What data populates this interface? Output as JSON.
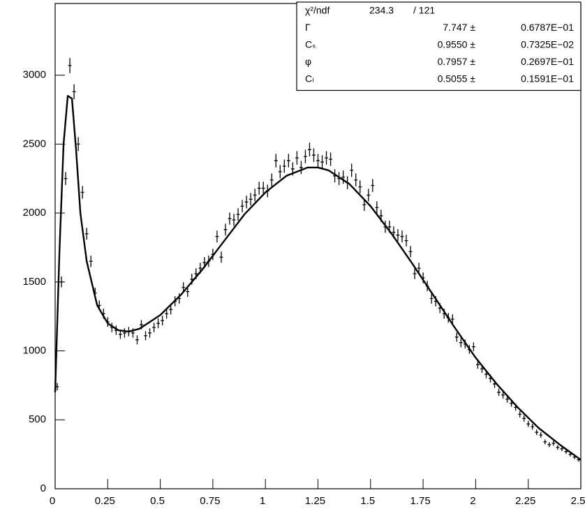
{
  "chart_data": {
    "type": "histogram-fit",
    "xlim": [
      0,
      2.5
    ],
    "ylim": [
      0,
      3520
    ],
    "xticks": [
      0,
      0.25,
      0.5,
      0.75,
      1,
      1.25,
      1.5,
      1.75,
      2,
      2.25,
      2.5
    ],
    "yticks": [
      0,
      500,
      1000,
      1500,
      2000,
      2500,
      3000
    ],
    "color": "#000000",
    "x": [
      0.01,
      0.03,
      0.05,
      0.07,
      0.09,
      0.11,
      0.13,
      0.15,
      0.17,
      0.19,
      0.21,
      0.23,
      0.25,
      0.27,
      0.29,
      0.31,
      0.33,
      0.35,
      0.37,
      0.39,
      0.41,
      0.43,
      0.45,
      0.47,
      0.49,
      0.51,
      0.53,
      0.55,
      0.57,
      0.59,
      0.61,
      0.63,
      0.65,
      0.67,
      0.69,
      0.71,
      0.73,
      0.75,
      0.77,
      0.79,
      0.81,
      0.83,
      0.85,
      0.87,
      0.89,
      0.91,
      0.93,
      0.95,
      0.97,
      0.99,
      1.01,
      1.03,
      1.05,
      1.07,
      1.09,
      1.11,
      1.13,
      1.15,
      1.17,
      1.19,
      1.21,
      1.23,
      1.25,
      1.27,
      1.29,
      1.31,
      1.33,
      1.35,
      1.37,
      1.39,
      1.41,
      1.43,
      1.45,
      1.47,
      1.49,
      1.51,
      1.53,
      1.55,
      1.57,
      1.59,
      1.61,
      1.63,
      1.65,
      1.67,
      1.69,
      1.71,
      1.73,
      1.75,
      1.77,
      1.79,
      1.81,
      1.83,
      1.85,
      1.87,
      1.89,
      1.91,
      1.93,
      1.95,
      1.97,
      1.99,
      2.01,
      2.03,
      2.05,
      2.07,
      2.09,
      2.11,
      2.13,
      2.15,
      2.17,
      2.19,
      2.21,
      2.23,
      2.25,
      2.27,
      2.29,
      2.31,
      2.33,
      2.35,
      2.37,
      2.39,
      2.41,
      2.43,
      2.45,
      2.47,
      2.49
    ],
    "values": [
      740,
      1500,
      2250,
      3070,
      2880,
      2500,
      2150,
      1850,
      1650,
      1420,
      1330,
      1270,
      1210,
      1170,
      1150,
      1120,
      1130,
      1140,
      1130,
      1080,
      1190,
      1110,
      1130,
      1170,
      1200,
      1220,
      1270,
      1300,
      1360,
      1380,
      1460,
      1430,
      1520,
      1560,
      1600,
      1640,
      1650,
      1700,
      1830,
      1680,
      1880,
      1960,
      1950,
      1990,
      2050,
      2080,
      2100,
      2130,
      2180,
      2180,
      2160,
      2240,
      2380,
      2300,
      2340,
      2380,
      2320,
      2400,
      2330,
      2410,
      2460,
      2420,
      2380,
      2370,
      2400,
      2390,
      2270,
      2250,
      2260,
      2220,
      2310,
      2240,
      2190,
      2060,
      2130,
      2200,
      2040,
      1980,
      1900,
      1900,
      1860,
      1840,
      1830,
      1800,
      1720,
      1560,
      1600,
      1530,
      1470,
      1380,
      1360,
      1310,
      1270,
      1240,
      1230,
      1100,
      1060,
      1050,
      1010,
      1030,
      900,
      870,
      830,
      800,
      760,
      700,
      680,
      650,
      620,
      590,
      540,
      510,
      470,
      450,
      410,
      390,
      340,
      320,
      330,
      300,
      290,
      270,
      250,
      230,
      210
    ],
    "errors": [
      27,
      39,
      47,
      55,
      54,
      50,
      46,
      43,
      41,
      38,
      36,
      36,
      35,
      34,
      34,
      33,
      34,
      34,
      34,
      33,
      34,
      33,
      34,
      34,
      35,
      35,
      36,
      36,
      37,
      37,
      38,
      38,
      39,
      39,
      40,
      40,
      41,
      41,
      43,
      41,
      43,
      44,
      44,
      45,
      45,
      46,
      46,
      46,
      47,
      47,
      46,
      47,
      49,
      48,
      48,
      49,
      48,
      49,
      48,
      49,
      50,
      49,
      49,
      49,
      49,
      49,
      48,
      47,
      48,
      47,
      48,
      47,
      47,
      45,
      46,
      47,
      45,
      44,
      44,
      44,
      43,
      43,
      43,
      42,
      41,
      39,
      40,
      39,
      38,
      37,
      37,
      36,
      36,
      35,
      35,
      33,
      33,
      32,
      32,
      32,
      30,
      29,
      29,
      28,
      28,
      26,
      26,
      25,
      25,
      24,
      23,
      23,
      22,
      21,
      20,
      20,
      18,
      18,
      18,
      17,
      17,
      16,
      16,
      15,
      14
    ],
    "fit": {
      "x": [
        0,
        0.02,
        0.04,
        0.06,
        0.08,
        0.1,
        0.12,
        0.15,
        0.2,
        0.25,
        0.3,
        0.35,
        0.4,
        0.5,
        0.6,
        0.7,
        0.8,
        0.9,
        1.0,
        1.1,
        1.2,
        1.25,
        1.3,
        1.4,
        1.5,
        1.6,
        1.7,
        1.8,
        1.9,
        2.0,
        2.1,
        2.2,
        2.3,
        2.4,
        2.5
      ],
      "values": [
        700,
        1700,
        2500,
        2850,
        2830,
        2450,
        2000,
        1650,
        1330,
        1200,
        1150,
        1140,
        1160,
        1260,
        1410,
        1590,
        1790,
        1990,
        2150,
        2270,
        2330,
        2330,
        2310,
        2210,
        2050,
        1850,
        1630,
        1400,
        1170,
        950,
        760,
        590,
        440,
        320,
        210
      ]
    },
    "stats": [
      {
        "label": "χ²/ndf",
        "value": "234.3",
        "error": "/  121"
      },
      {
        "label": "Γ",
        "value": "7.747 ±",
        "error": "0.6787E−01"
      },
      {
        "label": "Cₛ",
        "value": "0.9550 ±",
        "error": "0.7325E−02"
      },
      {
        "label": "φ",
        "value": "0.7957 ±",
        "error": "0.2697E−01"
      },
      {
        "label": "Cₗ",
        "value": "0.5055 ±",
        "error": "0.1591E−01"
      }
    ]
  }
}
